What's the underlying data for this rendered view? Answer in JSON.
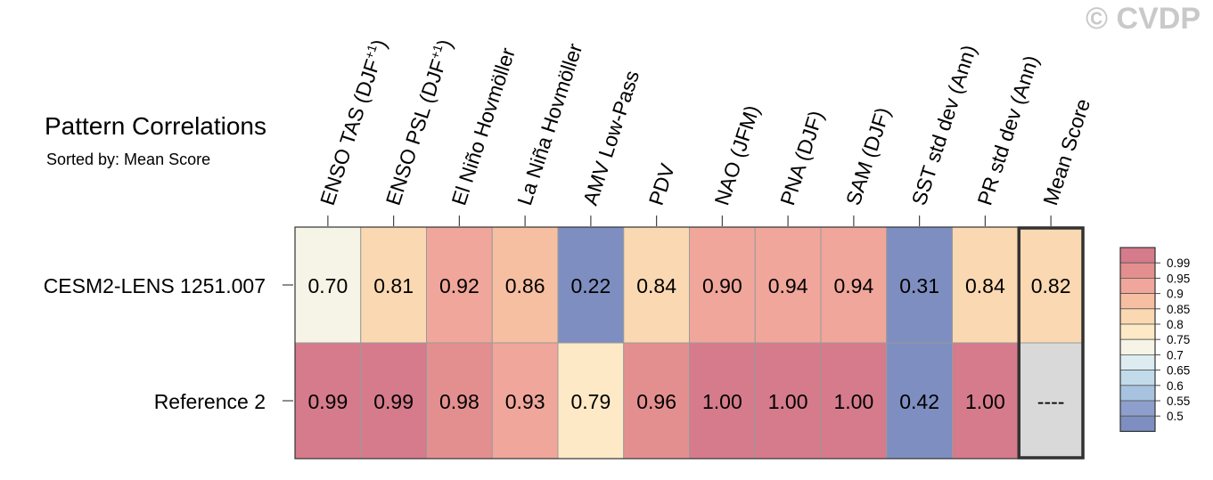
{
  "title": "Pattern Correlations",
  "subtitle": "Sorted by: Mean Score",
  "watermark": "© CVDP",
  "chart_data": {
    "type": "heatmap",
    "columns": [
      {
        "label": "ENSO TAS (DJF",
        "sup": "+1",
        "close": ")"
      },
      {
        "label": "ENSO PSL (DJF",
        "sup": "+1",
        "close": ")"
      },
      {
        "label": "El Niño Hovmöller"
      },
      {
        "label": "La Niña Hovmöller"
      },
      {
        "label": "AMV Low-Pass"
      },
      {
        "label": "PDV"
      },
      {
        "label": "NAO (JFM)"
      },
      {
        "label": "PNA (DJF)"
      },
      {
        "label": "SAM (DJF)"
      },
      {
        "label": "SST std dev (Ann)"
      },
      {
        "label": "PR std dev (Ann)"
      },
      {
        "label": "Mean Score"
      }
    ],
    "rows": [
      {
        "label": "CESM2-LENS 1251.007",
        "values": [
          0.7,
          0.81,
          0.92,
          0.86,
          0.22,
          0.84,
          0.9,
          0.94,
          0.94,
          0.31,
          0.84,
          0.82
        ],
        "text": [
          "0.70",
          "0.81",
          "0.92",
          "0.86",
          "0.22",
          "0.84",
          "0.90",
          "0.94",
          "0.94",
          "0.31",
          "0.84",
          "0.82"
        ]
      },
      {
        "label": "Reference 2",
        "values": [
          0.99,
          0.99,
          0.98,
          0.93,
          0.79,
          0.96,
          1.0,
          1.0,
          1.0,
          0.42,
          1.0,
          null
        ],
        "text": [
          "0.99",
          "0.99",
          "0.98",
          "0.93",
          "0.79",
          "0.96",
          "1.00",
          "1.00",
          "1.00",
          "0.42",
          "1.00",
          "----"
        ]
      }
    ],
    "colorbar": {
      "labels": [
        "0.99",
        "0.95",
        "0.9",
        "0.85",
        "0.8",
        "0.75",
        "0.7",
        "0.65",
        "0.6",
        "0.55",
        "0.5"
      ],
      "colors": [
        "#d57b8c",
        "#e48f8f",
        "#f0a69a",
        "#f6bfa2",
        "#fad8b2",
        "#fde9c5",
        "#f6f4e6",
        "#dcecf0",
        "#c1dbea",
        "#a7c3e0",
        "#8e9fcd",
        "#7e8ec0"
      ]
    },
    "missing_color": "#d9d9d9"
  }
}
